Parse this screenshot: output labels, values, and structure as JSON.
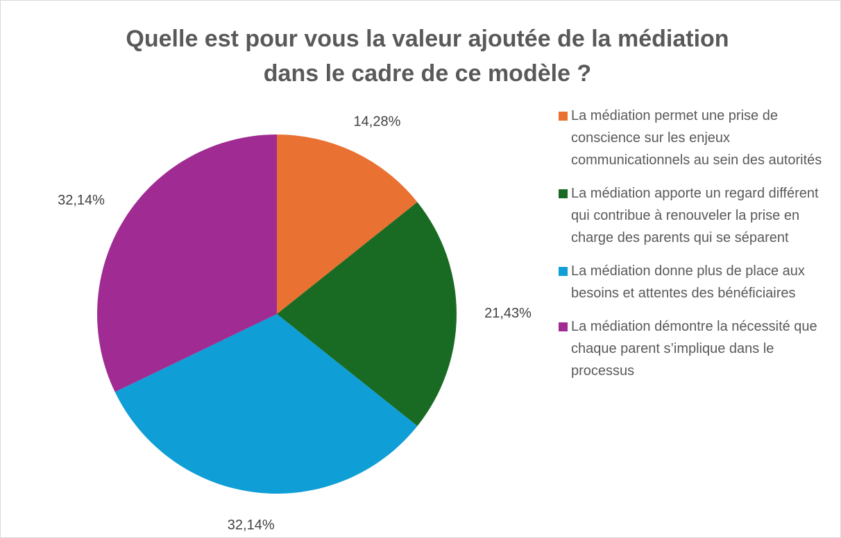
{
  "chart_data": {
    "type": "pie",
    "title": "Quelle est pour vous la valeur ajoutée de la médiation dans le cadre de ce modèle ?",
    "categories": [
      "La médiation permet une prise de conscience sur les enjeux communicationnels au sein des autorités",
      "La médiation apporte un regard différent qui contribue à renouveler la prise en charge des parents qui se séparent",
      "La médiation donne plus de place aux besoins et attentes des bénéficiaires",
      "La médiation démontre la nécessité que chaque parent s’implique dans le processus"
    ],
    "values": [
      14.28,
      21.43,
      32.14,
      32.14
    ],
    "value_labels": [
      "14,28%",
      "21,43%",
      "32,14%",
      "32,14%"
    ],
    "colors": [
      "#e97132",
      "#196b24",
      "#0f9ed5",
      "#a02b93"
    ],
    "legend": "right"
  }
}
